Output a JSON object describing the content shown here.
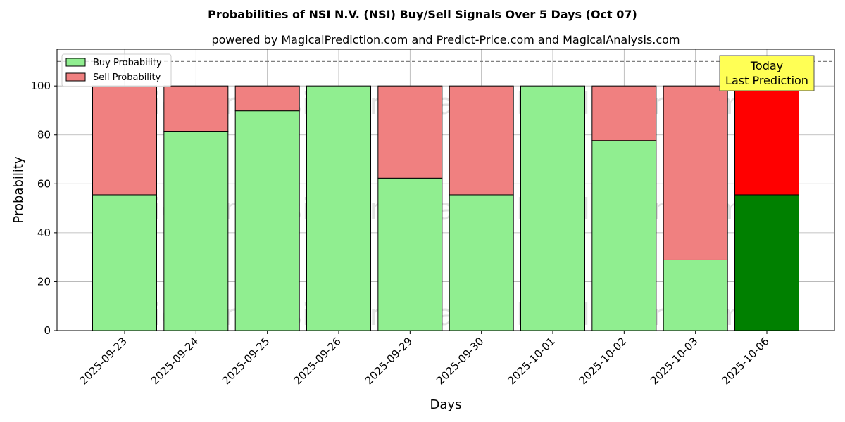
{
  "chart_data": {
    "type": "bar",
    "title": "Probabilities of NSI N.V. (NSI) Buy/Sell Signals Over 5 Days (Oct 07)",
    "subtitle": "powered by MagicalPrediction.com and Predict-Price.com and MagicalAnalysis.com",
    "xlabel": "Days",
    "ylabel": "Probability",
    "ylim": [
      0,
      115
    ],
    "yticks": [
      0,
      20,
      40,
      60,
      80,
      100
    ],
    "grid": true,
    "legend_placement": "top-left",
    "categories": [
      "2025-09-23",
      "2025-09-24",
      "2025-09-25",
      "2025-09-26",
      "2025-09-29",
      "2025-09-30",
      "2025-10-01",
      "2025-10-02",
      "2025-10-03",
      "2025-10-06"
    ],
    "series": [
      {
        "name": "Buy Probability",
        "color": "#90ee90",
        "values": [
          55.5,
          81.5,
          89.8,
          100,
          62.3,
          55.5,
          100,
          77.7,
          28.9,
          55.5
        ]
      },
      {
        "name": "Sell Probability",
        "color": "#f08080",
        "values": [
          44.5,
          18.5,
          10.2,
          0,
          37.7,
          44.5,
          0,
          22.3,
          71.1,
          44.5
        ]
      }
    ],
    "highlight": {
      "index": 9,
      "buy_color": "#008000",
      "sell_color": "#ff0000"
    },
    "reference_line": {
      "y": 110,
      "style": "dashed",
      "color": "#808080"
    },
    "annotation": {
      "lines": [
        "Today",
        "Last Prediction"
      ],
      "background": "#ffff55"
    },
    "watermarks": [
      "MagicalAnalysis.com",
      "MagicalPrediction.com"
    ]
  }
}
